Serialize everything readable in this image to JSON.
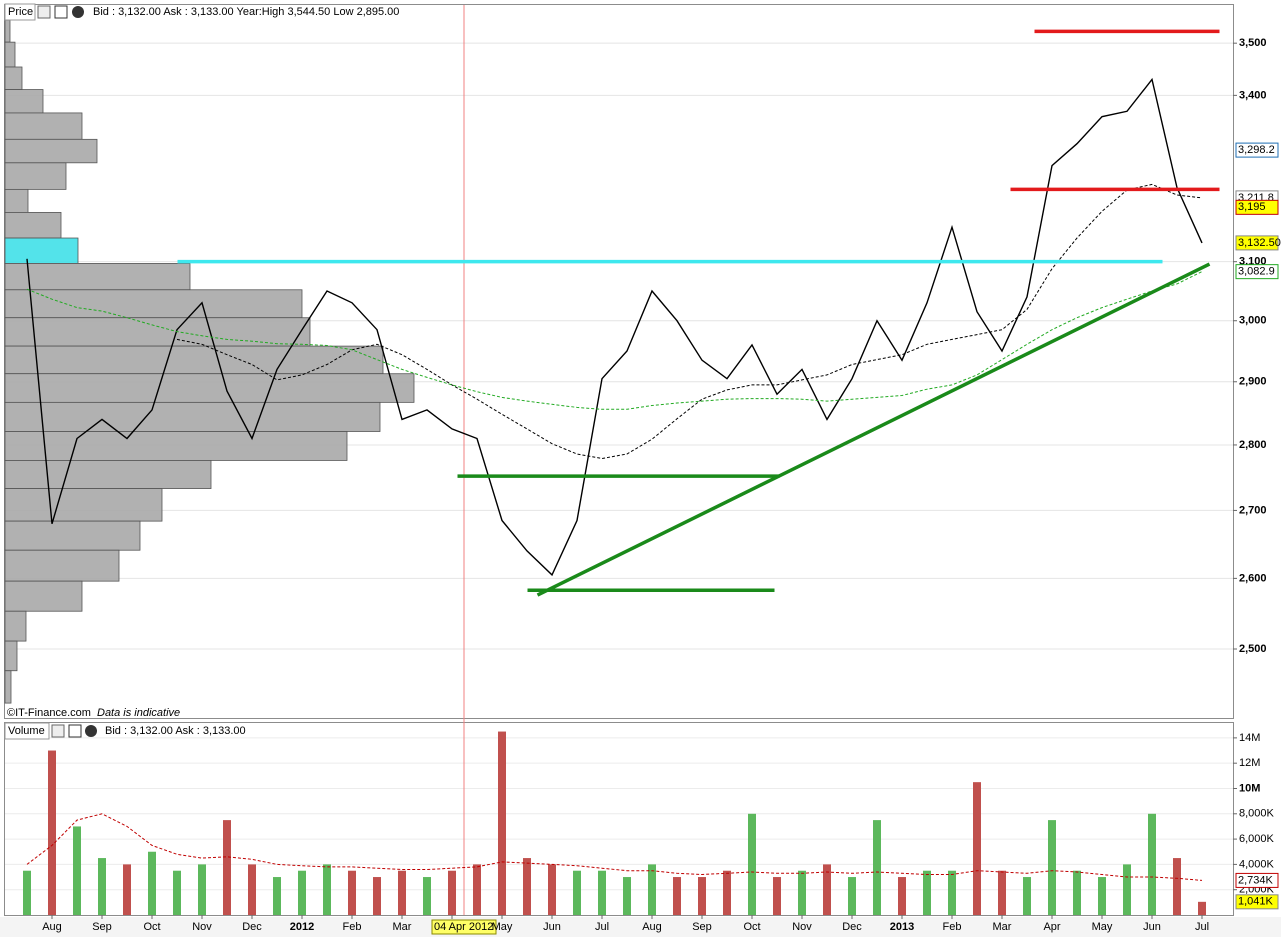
{
  "header": {
    "price_title": "Price",
    "price_quote": "Bid : 3,132.00 Ask : 3,133.00 Year:High 3,544.50 Low 2,895.00",
    "source": "©IT-Finance.com",
    "disclaimer": "Data is indicative",
    "volume_title": "Volume",
    "volume_quote": "Bid : 3,132.00 Ask : 3,133.00"
  },
  "chart_data": [
    {
      "type": "line",
      "log_scale": true,
      "grid": true,
      "cursor_color": "#f08080",
      "categories": [
        null,
        "Aug",
        null,
        "Sep",
        null,
        "Oct",
        null,
        "Nov",
        null,
        "Dec",
        null,
        "2012",
        null,
        "Feb",
        null,
        "Mar",
        null,
        "04 Apr 2012",
        null,
        "May",
        null,
        "Jun",
        null,
        "Jul",
        null,
        "Aug",
        null,
        "Sep",
        null,
        "Oct",
        null,
        "Nov",
        null,
        "Dec",
        null,
        "2013",
        null,
        "Feb",
        null,
        "Mar",
        null,
        "Apr",
        null,
        "May",
        null,
        "Jun",
        null,
        "Jul"
      ],
      "ylim": [
        2406,
        3575
      ],
      "yticks": [
        {
          "value": 2500,
          "label": "2,500"
        },
        {
          "value": 2600,
          "label": "2,600"
        },
        {
          "value": 2700,
          "label": "2,700"
        },
        {
          "value": 2800,
          "label": "2,800"
        },
        {
          "value": 2900,
          "label": "2,900"
        },
        {
          "value": 3000,
          "label": "3,000"
        },
        {
          "value": 3100,
          "label": "3,100"
        },
        {
          "value": 3400,
          "label": "3,400"
        },
        {
          "value": 3500,
          "label": "3,500"
        }
      ],
      "series": [
        {
          "color": "#000000",
          "dashed": false,
          "badge_color": "#ffff00",
          "values": [
            3105,
            2680,
            2810,
            2840,
            2810,
            2855,
            2985,
            3030,
            2885,
            2810,
            2920,
            2985,
            3050,
            3030,
            2985,
            2840,
            2855,
            2825,
            2810,
            2685,
            2640,
            2605,
            2685,
            2905,
            2950,
            3050,
            3000,
            2935,
            2905,
            2960,
            2880,
            2920,
            2840,
            2905,
            3000,
            2935,
            3030,
            3160,
            3015,
            2950,
            3040,
            3270,
            3310,
            3360,
            3370,
            3430,
            3230,
            3132.5
          ],
          "value_labels": [
            null,
            null,
            null,
            null,
            null,
            null,
            null,
            null,
            null,
            null,
            null,
            null,
            null,
            null,
            null,
            null,
            null,
            null,
            null,
            null,
            null,
            null,
            null,
            null,
            null,
            null,
            null,
            null,
            null,
            null,
            null,
            null,
            null,
            null,
            null,
            null,
            null,
            null,
            null,
            null,
            null,
            null,
            null,
            null,
            null,
            null,
            null,
            "3,132.50"
          ]
        },
        {
          "color": "#000000",
          "dashed": true,
          "badge_color": "#ffffff",
          "values": [
            null,
            null,
            null,
            null,
            null,
            null,
            2969,
            2961,
            2944,
            2928,
            2903,
            2911,
            2928,
            2952,
            2961,
            2944,
            2920,
            2895,
            2872,
            2848,
            2825,
            2802,
            2786,
            2779,
            2786,
            2809,
            2841,
            2872,
            2887,
            2895,
            2895,
            2903,
            2911,
            2928,
            2936,
            2944,
            2961,
            2969,
            2977,
            2985,
            3019,
            3088,
            3141,
            3188,
            3226,
            3236,
            3217,
            3211.8
          ],
          "value_labels": [
            null,
            null,
            null,
            null,
            null,
            null,
            null,
            null,
            null,
            null,
            null,
            null,
            null,
            null,
            null,
            null,
            null,
            null,
            null,
            null,
            null,
            null,
            null,
            null,
            null,
            null,
            null,
            null,
            null,
            null,
            null,
            null,
            null,
            null,
            null,
            null,
            null,
            null,
            null,
            null,
            null,
            null,
            null,
            null,
            null,
            null,
            null,
            "3,211.8"
          ]
        },
        {
          "color": "#22aa22",
          "dashed": true,
          "badge_color": "#ffffff",
          "values": [
            3053,
            3036,
            3022,
            3016,
            3005,
            2993,
            2982,
            2975,
            2969,
            2966,
            2962,
            2961,
            2959,
            2952,
            2936,
            2920,
            2907,
            2895,
            2884,
            2875,
            2869,
            2864,
            2859,
            2856,
            2856,
            2862,
            2866,
            2869,
            2872,
            2873,
            2873,
            2872,
            2869,
            2872,
            2875,
            2878,
            2888,
            2895,
            2911,
            2936,
            2961,
            2985,
            3005,
            3022,
            3036,
            3050,
            3062,
            3082.9
          ],
          "value_labels": [
            null,
            null,
            null,
            null,
            null,
            null,
            null,
            null,
            null,
            null,
            null,
            null,
            null,
            null,
            null,
            null,
            null,
            null,
            null,
            null,
            null,
            null,
            null,
            null,
            null,
            null,
            null,
            null,
            null,
            null,
            null,
            null,
            null,
            null,
            null,
            null,
            null,
            null,
            null,
            null,
            null,
            null,
            null,
            null,
            null,
            null,
            null,
            "3,082.9"
          ]
        }
      ],
      "axis_badges": [
        {
          "value": 3298.2,
          "label": "3,298.2",
          "color": "#1f6fb4",
          "fill": "#ffffff"
        },
        {
          "value": 3195,
          "label": "3,195",
          "color": "#c00000",
          "fill": "#ffff00"
        }
      ],
      "profile": {
        "color": "#a9a9a9",
        "highlight_color": "#40e0e8",
        "bins": [
          3545,
          3502,
          3454,
          3411,
          3367,
          3318,
          3275,
          3227,
          3186,
          3141,
          3097,
          3052,
          3005,
          2958,
          2913,
          2867,
          2821,
          2776,
          2733,
          2684,
          2641,
          2596,
          2553,
          2511,
          2470,
          2426
        ],
        "values": [
          5,
          10,
          17,
          38,
          77,
          92,
          61,
          23,
          56,
          73,
          185,
          297,
          305,
          378,
          409,
          375,
          342,
          206,
          157,
          135,
          114,
          77,
          21,
          12,
          6
        ]
      },
      "levels": [
        {
          "color": "#e31a1c",
          "x": [
            40.8,
            48.2
          ],
          "y": [
            3523,
            3523
          ]
        },
        {
          "color": "#e31a1c",
          "x": [
            39.84,
            48.2
          ],
          "y": [
            3227,
            3227
          ]
        },
        {
          "color": "#3ee8ee",
          "x": [
            6.52,
            45.92
          ],
          "y": [
            3100,
            3100
          ]
        },
        {
          "color": "#1a8a1a",
          "x": [
            17.72,
            30.6
          ],
          "y": [
            2752,
            2752
          ]
        },
        {
          "color": "#1a8a1a",
          "x": [
            20.52,
            30.4
          ],
          "y": [
            2583,
            2583
          ]
        },
        {
          "color": "#1a8a1a",
          "x": [
            20.92,
            47.8
          ],
          "y": [
            2576,
            3096
          ]
        }
      ]
    },
    {
      "type": "bar",
      "grid": true,
      "up_color": "#5cb85c",
      "down_color": "#c0504d",
      "ylim": [
        0,
        14860000
      ],
      "yticks": [
        {
          "value": 2000000,
          "label": "2,000K"
        },
        {
          "value": 4000000,
          "label": "4,000K"
        },
        {
          "value": 6000000,
          "label": "6,000K"
        },
        {
          "value": 8000000,
          "label": "8,000K"
        },
        {
          "value": 10000000,
          "label": "10M"
        },
        {
          "value": 12000000,
          "label": "12M"
        },
        {
          "value": 14000000,
          "label": "14M"
        }
      ],
      "series": [
        {
          "type": "bar",
          "badge_color": "#ffff00",
          "values": [
            3500000,
            13000000,
            7000000,
            4500000,
            4000000,
            5000000,
            3500000,
            4000000,
            7500000,
            4000000,
            3000000,
            3500000,
            4000000,
            3500000,
            3000000,
            3500000,
            3000000,
            3500000,
            4000000,
            14500000,
            4500000,
            4000000,
            3500000,
            3500000,
            3000000,
            4000000,
            3000000,
            3000000,
            3500000,
            8000000,
            3000000,
            3500000,
            4000000,
            3000000,
            7500000,
            3000000,
            3500000,
            3500000,
            10500000,
            3500000,
            3000000,
            7500000,
            3500000,
            3000000,
            4000000,
            8000000,
            4500000,
            1041000
          ],
          "value_labels": [
            null,
            null,
            null,
            null,
            null,
            null,
            null,
            null,
            null,
            null,
            null,
            null,
            null,
            null,
            null,
            null,
            null,
            null,
            null,
            null,
            null,
            null,
            null,
            null,
            null,
            null,
            null,
            null,
            null,
            null,
            null,
            null,
            null,
            null,
            null,
            null,
            null,
            null,
            null,
            null,
            null,
            null,
            null,
            null,
            null,
            null,
            null,
            "1,041K"
          ]
        },
        {
          "type": "line",
          "color": "#c00000",
          "dashed": true,
          "badge_color": "#ffffff",
          "values": [
            4000000,
            5500000,
            7500000,
            8000000,
            7000000,
            5500000,
            4800000,
            4500000,
            4600000,
            4400000,
            4000000,
            3900000,
            3800000,
            3800000,
            3700000,
            3600000,
            3600000,
            3700000,
            3800000,
            4200000,
            4100000,
            4000000,
            3900000,
            3700000,
            3500000,
            3500000,
            3300000,
            3200000,
            3300000,
            3400000,
            3300000,
            3300000,
            3400000,
            3300000,
            3400000,
            3300000,
            3200000,
            3200000,
            3500000,
            3400000,
            3300000,
            3500000,
            3400000,
            3200000,
            3000000,
            3000000,
            2900000,
            2734000
          ],
          "value_labels": [
            null,
            null,
            null,
            null,
            null,
            null,
            null,
            null,
            null,
            null,
            null,
            null,
            null,
            null,
            null,
            null,
            null,
            null,
            null,
            null,
            null,
            null,
            null,
            null,
            null,
            null,
            null,
            null,
            null,
            null,
            null,
            null,
            null,
            null,
            null,
            null,
            null,
            null,
            null,
            null,
            null,
            null,
            null,
            null,
            null,
            null,
            null,
            "2,734K"
          ]
        }
      ]
    }
  ]
}
